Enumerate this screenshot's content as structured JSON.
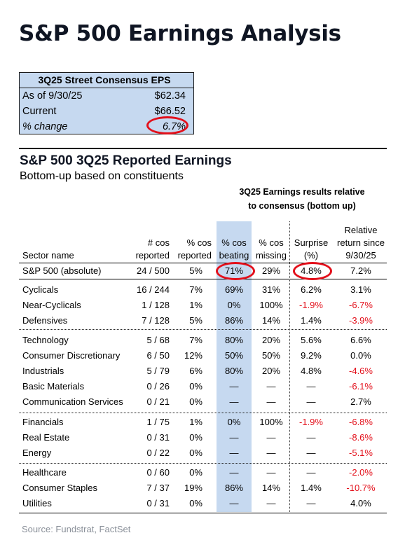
{
  "page_title": "S&P 500 Earnings Analysis",
  "consensus": {
    "header": "3Q25 Street Consensus EPS",
    "rows": [
      {
        "label": "As of 9/30/25",
        "value": "$62.34"
      },
      {
        "label": "Current",
        "value": "$66.52"
      },
      {
        "label": "% change",
        "value": "6.7%"
      }
    ]
  },
  "section": {
    "title": "S&P 500 3Q25 Reported Earnings",
    "subtitle": "Bottom-up based on constituents",
    "group_header_line1": "3Q25 Earnings results relative",
    "group_header_line2": "to consensus (bottom up)"
  },
  "columns": {
    "sector": "Sector name",
    "cos_reported_1": "# cos",
    "cos_reported_2": "reported",
    "pct_reported_1": "% cos",
    "pct_reported_2": "reported",
    "pct_beating_1": "% cos",
    "pct_beating_2": "beating",
    "pct_missing_1": "% cos",
    "pct_missing_2": "missing",
    "surprise_1": "Surprise",
    "surprise_2": "(%)",
    "return_1": "Relative",
    "return_2": "return since",
    "return_3": "9/30/25"
  },
  "rows": [
    {
      "sector": "S&P 500 (absolute)",
      "reported": "24 / 500",
      "pct_reported": "5%",
      "beating": "71%",
      "missing": "29%",
      "surprise": "4.8%",
      "ret": "7.2%"
    },
    {
      "sector": "Cyclicals",
      "reported": "16 / 244",
      "pct_reported": "7%",
      "beating": "69%",
      "missing": "31%",
      "surprise": "6.2%",
      "ret": "3.1%"
    },
    {
      "sector": "Near-Cyclicals",
      "reported": "1 / 128",
      "pct_reported": "1%",
      "beating": "0%",
      "missing": "100%",
      "surprise": "-1.9%",
      "ret": "-6.7%"
    },
    {
      "sector": "Defensives",
      "reported": "7 / 128",
      "pct_reported": "5%",
      "beating": "86%",
      "missing": "14%",
      "surprise": "1.4%",
      "ret": "-3.9%"
    },
    {
      "sector": "Technology",
      "reported": "5 / 68",
      "pct_reported": "7%",
      "beating": "80%",
      "missing": "20%",
      "surprise": "5.6%",
      "ret": "6.6%"
    },
    {
      "sector": "Consumer Discretionary",
      "reported": "6 / 50",
      "pct_reported": "12%",
      "beating": "50%",
      "missing": "50%",
      "surprise": "9.2%",
      "ret": "0.0%"
    },
    {
      "sector": "Industrials",
      "reported": "5 / 79",
      "pct_reported": "6%",
      "beating": "80%",
      "missing": "20%",
      "surprise": "4.8%",
      "ret": "-4.6%"
    },
    {
      "sector": "Basic Materials",
      "reported": "0 / 26",
      "pct_reported": "0%",
      "beating": "—",
      "missing": "—",
      "surprise": "—",
      "ret": "-6.1%"
    },
    {
      "sector": "Communication Services",
      "reported": "0 / 21",
      "pct_reported": "0%",
      "beating": "—",
      "missing": "—",
      "surprise": "—",
      "ret": "2.7%"
    },
    {
      "sector": "Financials",
      "reported": "1 / 75",
      "pct_reported": "1%",
      "beating": "0%",
      "missing": "100%",
      "surprise": "-1.9%",
      "ret": "-6.8%"
    },
    {
      "sector": "Real Estate",
      "reported": "0 / 31",
      "pct_reported": "0%",
      "beating": "—",
      "missing": "—",
      "surprise": "—",
      "ret": "-8.6%"
    },
    {
      "sector": "Energy",
      "reported": "0 / 22",
      "pct_reported": "0%",
      "beating": "—",
      "missing": "—",
      "surprise": "—",
      "ret": "-5.1%"
    },
    {
      "sector": "Healthcare",
      "reported": "0 / 60",
      "pct_reported": "0%",
      "beating": "—",
      "missing": "—",
      "surprise": "—",
      "ret": "-2.0%"
    },
    {
      "sector": "Consumer Staples",
      "reported": "7 / 37",
      "pct_reported": "19%",
      "beating": "86%",
      "missing": "14%",
      "surprise": "1.4%",
      "ret": "-10.7%"
    },
    {
      "sector": "Utilities",
      "reported": "0 / 31",
      "pct_reported": "0%",
      "beating": "—",
      "missing": "—",
      "surprise": "—",
      "ret": "4.0%"
    }
  ],
  "source": "Source: Fundstrat, FactSet",
  "colors": {
    "highlight_band": "#c6d9f0",
    "negative": "#e3101b",
    "circle": "#e3101b"
  }
}
